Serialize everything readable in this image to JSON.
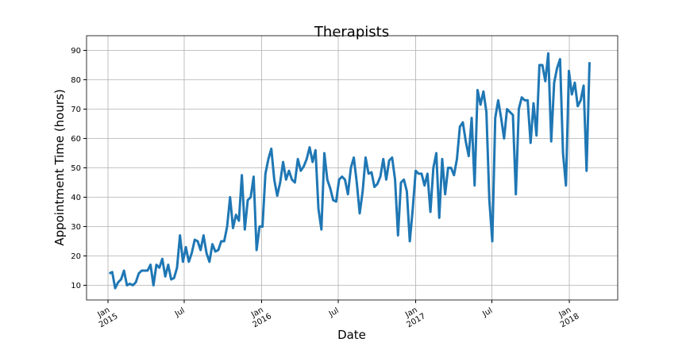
{
  "chart_data": {
    "type": "line",
    "title": "Therapists",
    "xlabel": "Date",
    "ylabel": "Appointment Time (hours)",
    "grid": true,
    "xlim": [
      "2014-11-11",
      "2018-04-26"
    ],
    "ylim": [
      5,
      95
    ],
    "yticks": [
      10,
      20,
      30,
      40,
      50,
      60,
      70,
      80,
      90
    ],
    "xticks": [
      {
        "value": "2015-01-01",
        "label": [
          "Jan",
          "2015"
        ]
      },
      {
        "value": "2015-07-01",
        "label": [
          "Jul"
        ]
      },
      {
        "value": "2016-01-01",
        "label": [
          "Jan",
          "2016"
        ]
      },
      {
        "value": "2016-07-01",
        "label": [
          "Jul"
        ]
      },
      {
        "value": "2017-01-01",
        "label": [
          "Jan",
          "2017"
        ]
      },
      {
        "value": "2017-07-01",
        "label": [
          "Jul"
        ]
      },
      {
        "value": "2018-01-01",
        "label": [
          "Jan",
          "2018"
        ]
      }
    ],
    "x": [
      "2015-01-04",
      "2015-01-11",
      "2015-01-18",
      "2015-01-25",
      "2015-02-01",
      "2015-02-08",
      "2015-02-15",
      "2015-02-22",
      "2015-03-01",
      "2015-03-08",
      "2015-03-15",
      "2015-03-22",
      "2015-03-29",
      "2015-04-05",
      "2015-04-12",
      "2015-04-19",
      "2015-04-26",
      "2015-05-03",
      "2015-05-10",
      "2015-05-17",
      "2015-05-24",
      "2015-05-31",
      "2015-06-07",
      "2015-06-14",
      "2015-06-21",
      "2015-06-28",
      "2015-07-05",
      "2015-07-12",
      "2015-07-19",
      "2015-07-26",
      "2015-08-02",
      "2015-08-09",
      "2015-08-16",
      "2015-08-23",
      "2015-08-30",
      "2015-09-06",
      "2015-09-13",
      "2015-09-20",
      "2015-09-27",
      "2015-10-04",
      "2015-10-11",
      "2015-10-18",
      "2015-10-25",
      "2015-11-01",
      "2015-11-08",
      "2015-11-15",
      "2015-11-22",
      "2015-11-29",
      "2015-12-06",
      "2015-12-13",
      "2015-12-20",
      "2015-12-27",
      "2016-01-03",
      "2016-01-10",
      "2016-01-17",
      "2016-01-24",
      "2016-01-31",
      "2016-02-07",
      "2016-02-14",
      "2016-02-21",
      "2016-02-28",
      "2016-03-06",
      "2016-03-13",
      "2016-03-20",
      "2016-03-27",
      "2016-04-03",
      "2016-04-10",
      "2016-04-17",
      "2016-04-24",
      "2016-05-01",
      "2016-05-08",
      "2016-05-15",
      "2016-05-22",
      "2016-05-29",
      "2016-06-05",
      "2016-06-12",
      "2016-06-19",
      "2016-06-26",
      "2016-07-03",
      "2016-07-10",
      "2016-07-17",
      "2016-07-24",
      "2016-07-31",
      "2016-08-07",
      "2016-08-14",
      "2016-08-21",
      "2016-08-28",
      "2016-09-04",
      "2016-09-11",
      "2016-09-18",
      "2016-09-25",
      "2016-10-02",
      "2016-10-09",
      "2016-10-16",
      "2016-10-23",
      "2016-10-30",
      "2016-11-06",
      "2016-11-13",
      "2016-11-20",
      "2016-11-27",
      "2016-12-04",
      "2016-12-11",
      "2016-12-18",
      "2016-12-25",
      "2017-01-01",
      "2017-01-08",
      "2017-01-15",
      "2017-01-22",
      "2017-01-29",
      "2017-02-05",
      "2017-02-12",
      "2017-02-19",
      "2017-02-26",
      "2017-03-05",
      "2017-03-12",
      "2017-03-19",
      "2017-03-26",
      "2017-04-02",
      "2017-04-09",
      "2017-04-16",
      "2017-04-23",
      "2017-04-30",
      "2017-05-07",
      "2017-05-14",
      "2017-05-21",
      "2017-05-28",
      "2017-06-04",
      "2017-06-11",
      "2017-06-18",
      "2017-06-25",
      "2017-07-02",
      "2017-07-09",
      "2017-07-16",
      "2017-07-23",
      "2017-07-30",
      "2017-08-06",
      "2017-08-13",
      "2017-08-20",
      "2017-08-27",
      "2017-09-03",
      "2017-09-10",
      "2017-09-17",
      "2017-09-24",
      "2017-10-01",
      "2017-10-08",
      "2017-10-15",
      "2017-10-22",
      "2017-10-29",
      "2017-11-05",
      "2017-11-12",
      "2017-11-19",
      "2017-11-26",
      "2017-12-03",
      "2017-12-10",
      "2017-12-17",
      "2017-12-24",
      "2017-12-31",
      "2018-01-07",
      "2018-01-14",
      "2018-01-21",
      "2018-01-28",
      "2018-02-04",
      "2018-02-11",
      "2018-02-18"
    ],
    "series": [
      {
        "color": "#1f77b4",
        "values": [
          14,
          14.5,
          9,
          11,
          12,
          15,
          10,
          10.5,
          10,
          11,
          14,
          15,
          15,
          15,
          17,
          10,
          17,
          16,
          19,
          13,
          17,
          12,
          12.5,
          16,
          27,
          18,
          23,
          18,
          21,
          25.5,
          25,
          22,
          27,
          21,
          18,
          24,
          21.5,
          22,
          25,
          25,
          30,
          40,
          29.5,
          34,
          32,
          47.5,
          29,
          39,
          40,
          47,
          22,
          30,
          30,
          48,
          53,
          56.5,
          46,
          40.5,
          45,
          52,
          46,
          49,
          46,
          45,
          53,
          49,
          50.5,
          53,
          57,
          52,
          56,
          36,
          29,
          55,
          46,
          43,
          39,
          38.5,
          46,
          47,
          46,
          41,
          50,
          53.5,
          45,
          34.5,
          42,
          53.5,
          48,
          48.5,
          43.5,
          44.5,
          47,
          53,
          46,
          52.5,
          53.5,
          46,
          27,
          45,
          46,
          42,
          25,
          36,
          49,
          48,
          48,
          44,
          48,
          35,
          50,
          55,
          33,
          53,
          41,
          50,
          50,
          47.5,
          53,
          64,
          65.5,
          59,
          54,
          67,
          44,
          76.5,
          71.5,
          76,
          69,
          39,
          25,
          67,
          73,
          67,
          60,
          70,
          69,
          68,
          41,
          70,
          74,
          73,
          73,
          58.5,
          72,
          61,
          85,
          85,
          79.5,
          89,
          59,
          79,
          84,
          87,
          55,
          44,
          83,
          75,
          79,
          71,
          73,
          78,
          49,
          86
        ]
      }
    ]
  }
}
